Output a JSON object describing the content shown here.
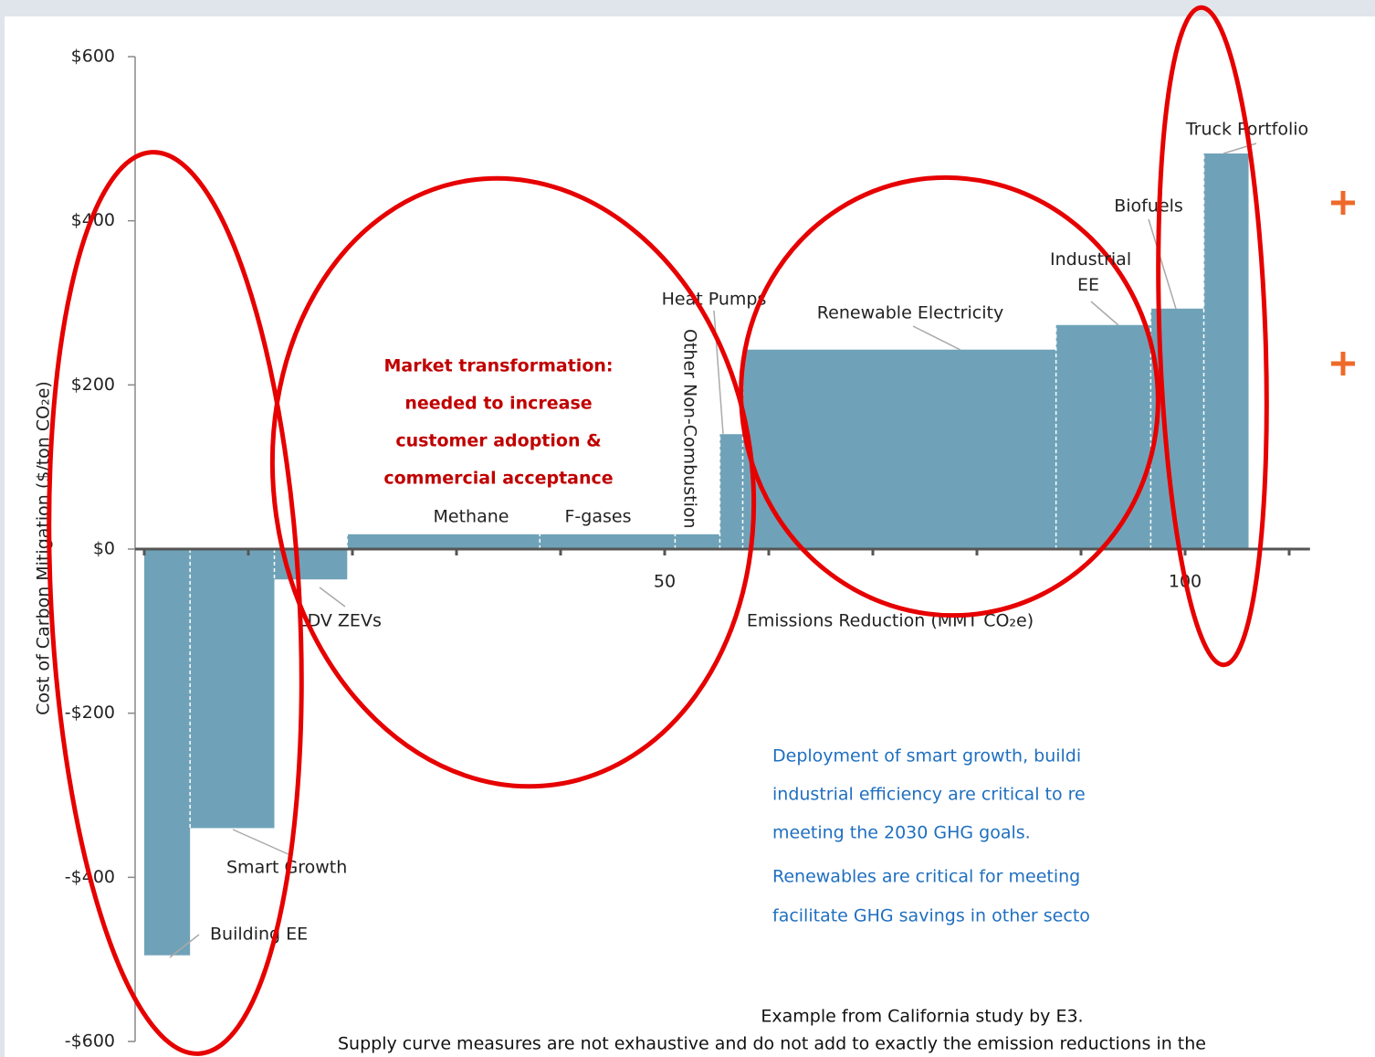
{
  "chart_data": {
    "type": "variable-width-bar",
    "categories": [
      "Building EE",
      "Smart Growth",
      "LDV ZEVs",
      "Methane",
      "F-gases",
      "Other Non-Combustion",
      "Heat Pumps",
      "Renewable Electricity",
      "Industrial EE",
      "Biofuels",
      "Truck Portfolio"
    ],
    "widths": [
      4.4,
      8.1,
      7.0,
      18.5,
      13.0,
      4.3,
      2.2,
      30.1,
      9.1,
      5.1,
      4.3
    ],
    "values": [
      -495,
      -340,
      -37,
      18,
      18,
      18,
      140,
      243,
      273,
      293,
      482
    ],
    "color": "#6fa2b8",
    "xlim": [
      0,
      112
    ],
    "xticks": [
      50,
      100
    ],
    "xticks_minor": [
      0,
      10,
      20,
      30,
      40,
      50,
      60,
      70,
      80,
      90,
      100,
      110
    ],
    "ylim": [
      -600,
      600
    ],
    "yticks": [
      {
        "value": 600,
        "label": "$600"
      },
      {
        "value": 400,
        "label": "$400"
      },
      {
        "value": 200,
        "label": "$200"
      },
      {
        "value": 0,
        "label": "$0"
      },
      {
        "value": -200,
        "label": "-$200"
      },
      {
        "value": -400,
        "label": "-$400"
      },
      {
        "value": -600,
        "label": "-$600"
      }
    ],
    "x_label": "Emissions Reduction (MMT CO₂e)",
    "y_label": "Cost of Carbon Mitigation ($/ton CO₂e)",
    "annotation": [
      "Market transformation:",
      "needed to increase",
      "customer adoption &",
      "commercial acceptance"
    ],
    "callout": [
      "Deployment of smart growth, buildi",
      "industrial efficiency are critical to re",
      "meeting the 2030 GHG goals.",
      "Renewables are critical for meeting",
      "facilitate GHG savings in other secto"
    ],
    "source": "Example from California study by E3.",
    "footnote": "Supply curve measures are not exhaustive and do not add to exactly the emission reductions in the"
  }
}
